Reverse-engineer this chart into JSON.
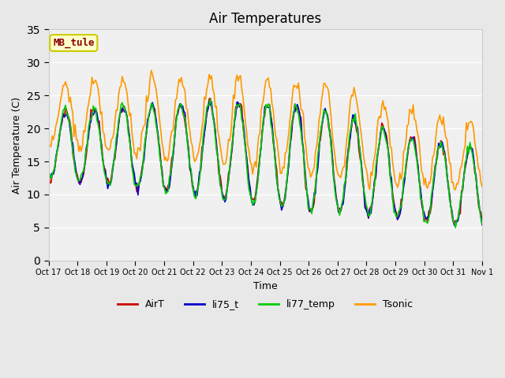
{
  "title": "Air Temperatures",
  "xlabel": "Time",
  "ylabel": "Air Temperature (C)",
  "ylim": [
    0,
    35
  ],
  "yticks": [
    0,
    5,
    10,
    15,
    20,
    25,
    30,
    35
  ],
  "annotation": "MB_tule",
  "bg_color": "#e8e8e8",
  "plot_bg": "#f0f0f0",
  "line_colors": {
    "AirT": "#cc0000",
    "li75_t": "#0000cc",
    "li77_temp": "#00cc00",
    "Tsonic": "#ff9900"
  },
  "legend_entries": [
    "AirT",
    "li75_t",
    "li77_temp",
    "Tsonic"
  ],
  "num_points": 360,
  "num_days": 15,
  "tick_labels": [
    "Oct 17",
    "Oct 18",
    "Oct 19",
    "Oct 20",
    "Oct 21",
    "Oct 22",
    "Oct 23",
    "Oct 24",
    "Oct 25",
    "Oct 26",
    "Oct 27",
    "Oct 28",
    "Oct 29",
    "Oct 30",
    "Oct 31",
    "Nov 1"
  ]
}
